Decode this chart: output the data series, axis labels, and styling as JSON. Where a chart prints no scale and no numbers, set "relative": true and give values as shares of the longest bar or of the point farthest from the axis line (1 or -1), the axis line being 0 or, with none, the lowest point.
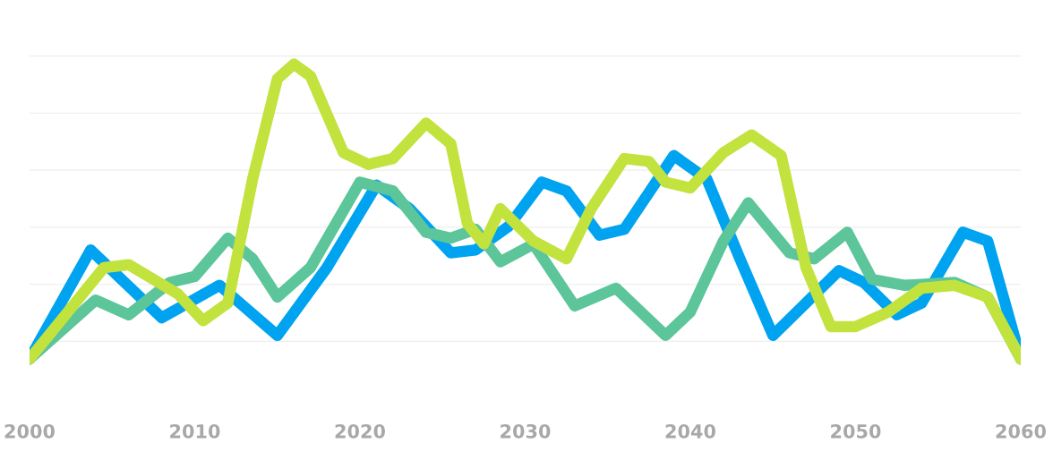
{
  "chart_data": {
    "type": "line",
    "relative": true,
    "grid": "y",
    "xlim": [
      2000,
      2060
    ],
    "xticks": [
      2000,
      2010,
      2020,
      2030,
      2040,
      2050,
      2060
    ],
    "line_style": "solid",
    "series": [
      {
        "color": "#00a3f0",
        "x": [
          2000,
          2003.7,
          2008,
          2011.5,
          2015,
          2018,
          2021,
          2023,
          2025.5,
          2027,
          2029,
          2031,
          2032.5,
          2034.5,
          2036,
          2039,
          2041,
          2043,
          2045,
          2047,
          2049,
          2050.5,
          2052.5,
          2054,
          2056.5,
          2058,
          2060
        ],
        "values": [
          0,
          0.37,
          0.14,
          0.25,
          0.08,
          0.31,
          0.59,
          0.51,
          0.36,
          0.37,
          0.45,
          0.6,
          0.57,
          0.42,
          0.44,
          0.69,
          0.61,
          0.34,
          0.08,
          0.19,
          0.3,
          0.26,
          0.15,
          0.19,
          0.43,
          0.4,
          0
        ]
      },
      {
        "color": "#5cc59a",
        "x": [
          2000,
          2004,
          2006,
          2008.5,
          2010,
          2012,
          2013.5,
          2015,
          2017,
          2020,
          2022,
          2024,
          2025.5,
          2027,
          2028.5,
          2030.5,
          2033,
          2035.5,
          2038.5,
          2040,
          2042,
          2043.5,
          2046,
          2047.5,
          2049.5,
          2051,
          2053,
          2056,
          2058,
          2060
        ],
        "values": [
          0,
          0.2,
          0.15,
          0.26,
          0.28,
          0.41,
          0.34,
          0.21,
          0.31,
          0.6,
          0.57,
          0.43,
          0.41,
          0.44,
          0.33,
          0.39,
          0.18,
          0.24,
          0.08,
          0.16,
          0.4,
          0.53,
          0.36,
          0.34,
          0.43,
          0.27,
          0.25,
          0.26,
          0.21,
          0
        ]
      },
      {
        "color": "#c2e23e",
        "x": [
          2000,
          2004.5,
          2006,
          2009,
          2010.5,
          2012,
          2013.5,
          2015,
          2016,
          2017,
          2019,
          2020.5,
          2022,
          2024,
          2025.5,
          2026.5,
          2027.5,
          2028.5,
          2030.5,
          2032.5,
          2034,
          2036,
          2037.5,
          2038.5,
          2040,
          2042,
          2043.7,
          2045.5,
          2047,
          2048.5,
          2050,
          2052,
          2054,
          2056,
          2058,
          2060
        ],
        "values": [
          0,
          0.31,
          0.32,
          0.22,
          0.13,
          0.19,
          0.61,
          0.95,
          1,
          0.96,
          0.7,
          0.66,
          0.68,
          0.8,
          0.73,
          0.46,
          0.39,
          0.51,
          0.4,
          0.34,
          0.51,
          0.68,
          0.67,
          0.6,
          0.58,
          0.7,
          0.76,
          0.69,
          0.31,
          0.11,
          0.11,
          0.16,
          0.24,
          0.25,
          0.21,
          0
        ]
      }
    ]
  }
}
